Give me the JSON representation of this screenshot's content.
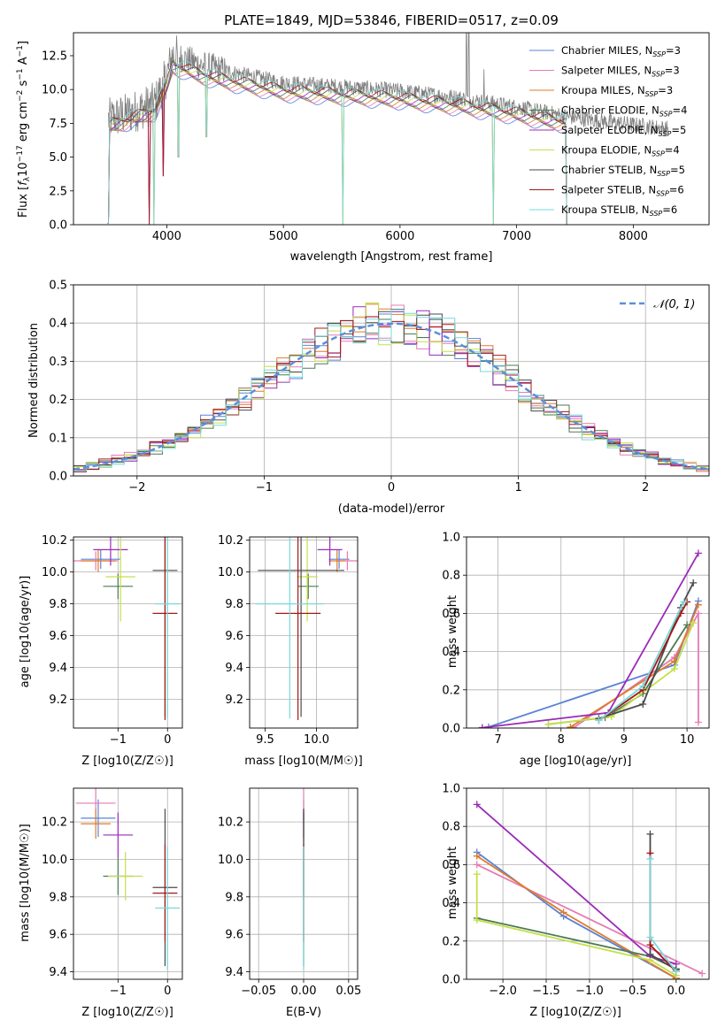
{
  "colors": {
    "chabrier_miles": "#5b82d8",
    "salpeter_miles": "#e57bb4",
    "kroupa_miles": "#e07b2a",
    "chabrier_elodie": "#4e7a52",
    "salpeter_elodie": "#9b2ab8",
    "kroupa_elodie": "#c4e04a",
    "chabrier_stelib": "#4a4a4a",
    "salpeter_stelib": "#a31818",
    "kroupa_stelib": "#78d8d8",
    "data": "#808080",
    "normal": "#5b8fdb",
    "grid": "#b0b0b0"
  },
  "chart_data": [
    {
      "id": "spectrum",
      "type": "line",
      "title": "PLATE=1849, MJD=53846, FIBERID=0517, z=0.09",
      "xlabel": "wavelength [Angstrom, rest frame]",
      "ylabel": "Flux [f_λ 10^-17 erg cm^-2 s^-1 A^-1]",
      "xlim": [
        3200,
        8650
      ],
      "ylim": [
        0,
        14.2
      ],
      "xticks": [
        "4000",
        "5000",
        "6000",
        "7000",
        "8000"
      ],
      "yticks": [
        "0.0",
        "2.5",
        "5.0",
        "7.5",
        "10.0",
        "12.5"
      ],
      "grid": false,
      "legend_position": "top-right",
      "legend": [
        {
          "label": "Chabrier MILES, N",
          "sub": "SSP",
          "suffix": "=3",
          "color": "#5b82d8"
        },
        {
          "label": "Salpeter MILES, N",
          "sub": "SSP",
          "suffix": "=3",
          "color": "#e57bb4"
        },
        {
          "label": "Kroupa MILES, N",
          "sub": "SSP",
          "suffix": "=3",
          "color": "#e07b2a"
        },
        {
          "label": "Chabrier ELODIE, N",
          "sub": "SSP",
          "suffix": "=4",
          "color": "#4e7a52"
        },
        {
          "label": "Salpeter ELODIE, N",
          "sub": "SSP",
          "suffix": "=5",
          "color": "#9b2ab8"
        },
        {
          "label": "Kroupa ELODIE, N",
          "sub": "SSP",
          "suffix": "=4",
          "color": "#c4e04a"
        },
        {
          "label": "Chabrier STELIB, N",
          "sub": "SSP",
          "suffix": "=5",
          "color": "#4a4a4a"
        },
        {
          "label": "Salpeter STELIB, N",
          "sub": "SSP",
          "suffix": "=6",
          "color": "#a31818"
        },
        {
          "label": "Kroupa STELIB, N",
          "sub": "SSP",
          "suffix": "=6",
          "color": "#78d8d8"
        }
      ],
      "continuum": {
        "x": [
          3500,
          3700,
          3900,
          4000,
          4050,
          4300,
          4600,
          5000,
          5500,
          6000,
          6500,
          7000,
          7500,
          8000,
          8300
        ],
        "y": [
          7.8,
          8.3,
          9.0,
          11.0,
          12.6,
          11.8,
          11.2,
          10.5,
          10.2,
          9.9,
          9.4,
          8.7,
          7.9,
          7.4,
          7.1
        ]
      },
      "absorption_features": [
        {
          "x": 3850,
          "y": 0.0
        },
        {
          "x": 3890,
          "y": 0.0
        },
        {
          "x": 3970,
          "y": 3.6
        },
        {
          "x": 4100,
          "y": 5.0
        },
        {
          "x": 4340,
          "y": 6.5
        },
        {
          "x": 5510,
          "y": 0.0
        },
        {
          "x": 6800,
          "y": 0.0
        }
      ],
      "emission_features": [
        {
          "x": 6570,
          "y": 14.2
        },
        {
          "x": 6590,
          "y": 14.2
        },
        {
          "x": 6720,
          "y": 11.5
        }
      ],
      "model_end": [
        {
          "x": 3490,
          "y": 0.1
        },
        {
          "x": 7430,
          "y": 0.0
        }
      ]
    },
    {
      "id": "residuals",
      "type": "histogram",
      "xlabel": "(data-model)/error",
      "ylabel": "Normed distribution",
      "xlim": [
        -2.5,
        2.5
      ],
      "ylim": [
        0,
        0.5
      ],
      "xticks": [
        "−2",
        "−1",
        "0",
        "1",
        "2"
      ],
      "yticks": [
        "0.0",
        "0.1",
        "0.2",
        "0.3",
        "0.4",
        "0.5"
      ],
      "grid": true,
      "legend_position": "top-right",
      "legend": [
        {
          "label": "𝒩(0, 1)",
          "color": "#5b8fdb",
          "style": "dashed"
        }
      ],
      "bin_width": 0.1,
      "n_bins": 50
    },
    {
      "id": "age-vs-Z",
      "type": "errorbar",
      "xlabel": "Z [log10(Z/Z☉)]",
      "ylabel": "age [log10(age/yr)]",
      "xlim": [
        -1.9,
        0.3
      ],
      "ylim": [
        9.02,
        10.22
      ],
      "xticks": [
        "−1",
        "0"
      ],
      "yticks": [
        "9.2",
        "9.4",
        "9.6",
        "9.8",
        "10.0",
        "10.2"
      ],
      "grid": true,
      "points": [
        {
          "series": "chabrier_miles",
          "x": -1.35,
          "xerr": 0.4,
          "y": 10.08,
          "yerr": 0.06
        },
        {
          "series": "salpeter_miles",
          "x": -1.45,
          "xerr": 0.45,
          "y": 10.07,
          "yerr": 0.06
        },
        {
          "series": "kroupa_miles",
          "x": -1.4,
          "xerr": 0.35,
          "y": 10.07,
          "yerr": 0.07
        },
        {
          "series": "chabrier_elodie",
          "x": -1.0,
          "xerr": 0.3,
          "y": 9.91,
          "yerr": 0.08
        },
        {
          "series": "salpeter_elodie",
          "x": -1.15,
          "xerr": 0.35,
          "y": 10.14,
          "yerr": 0.1
        },
        {
          "series": "kroupa_elodie",
          "x": -0.95,
          "xerr": 0.3,
          "y": 9.97,
          "yerr": 0.28
        },
        {
          "series": "chabrier_stelib",
          "x": -0.05,
          "xerr": 0.25,
          "y": 10.01,
          "yerr": 0.92
        },
        {
          "series": "salpeter_stelib",
          "x": -0.05,
          "xerr": 0.25,
          "y": 9.74,
          "yerr": 0.67
        },
        {
          "series": "kroupa_stelib",
          "x": 0.0,
          "xerr": 0.25,
          "y": 9.8,
          "yerr": 0.72
        }
      ]
    },
    {
      "id": "age-vs-mass",
      "type": "errorbar",
      "xlabel": "mass [log10(M/M☉)]",
      "ylabel": "",
      "xlim": [
        9.35,
        10.4
      ],
      "ylim": [
        9.02,
        10.22
      ],
      "xticks": [
        "9.5",
        "10.0"
      ],
      "yticks": [
        "9.2",
        "9.4",
        "9.6",
        "9.8",
        "10.0",
        "10.2"
      ],
      "grid": true,
      "points": [
        {
          "series": "chabrier_miles",
          "x": 10.22,
          "xerr": 0.1,
          "y": 10.08,
          "yerr": 0.06
        },
        {
          "series": "salpeter_miles",
          "x": 10.3,
          "xerr": 0.1,
          "y": 10.07,
          "yerr": 0.06
        },
        {
          "series": "kroupa_miles",
          "x": 10.2,
          "xerr": 0.08,
          "y": 10.07,
          "yerr": 0.07
        },
        {
          "series": "chabrier_elodie",
          "x": 9.92,
          "xerr": 0.1,
          "y": 9.91,
          "yerr": 0.08
        },
        {
          "series": "salpeter_elodie",
          "x": 10.13,
          "xerr": 0.12,
          "y": 10.14,
          "yerr": 0.1
        },
        {
          "series": "kroupa_elodie",
          "x": 9.91,
          "xerr": 0.1,
          "y": 9.97,
          "yerr": 0.28
        },
        {
          "series": "chabrier_stelib",
          "x": 9.85,
          "xerr": 0.42,
          "y": 10.01,
          "yerr": 0.92
        },
        {
          "series": "salpeter_stelib",
          "x": 9.82,
          "xerr": 0.22,
          "y": 9.74,
          "yerr": 0.67
        },
        {
          "series": "kroupa_stelib",
          "x": 9.74,
          "xerr": 0.33,
          "y": 9.8,
          "yerr": 0.72
        }
      ]
    },
    {
      "id": "weight-vs-age",
      "type": "line",
      "xlabel": "age [log10(age/yr)]",
      "ylabel": "mass weight",
      "xlim": [
        6.5,
        10.35
      ],
      "ylim": [
        0,
        1.0
      ],
      "xticks": [
        "7",
        "8",
        "9",
        "10"
      ],
      "yticks": [
        "0.0",
        "0.2",
        "0.4",
        "0.6",
        "0.8",
        "1.0"
      ],
      "grid": true,
      "series": [
        {
          "key": "chabrier_miles",
          "points": [
            [
              6.85,
              0.005
            ],
            [
              9.8,
              0.33
            ],
            [
              10.18,
              0.665
            ]
          ]
        },
        {
          "key": "salpeter_miles",
          "points": [
            [
              8.2,
              0.002
            ],
            [
              9.8,
              0.37
            ],
            [
              10.18,
              0.6
            ],
            [
              10.18,
              0.03
            ]
          ]
        },
        {
          "key": "kroupa_miles",
          "points": [
            [
              8.15,
              0.005
            ],
            [
              9.8,
              0.35
            ],
            [
              10.18,
              0.645
            ]
          ]
        },
        {
          "key": "chabrier_elodie",
          "points": [
            [
              7.8,
              0.02
            ],
            [
              8.7,
              0.055
            ],
            [
              9.3,
              0.18
            ],
            [
              10.0,
              0.54
            ]
          ]
        },
        {
          "key": "salpeter_elodie",
          "points": [
            [
              6.75,
              0.002
            ],
            [
              8.75,
              0.08
            ],
            [
              10.18,
              0.915
            ]
          ]
        },
        {
          "key": "kroupa_elodie",
          "points": [
            [
              7.8,
              0.02
            ],
            [
              8.8,
              0.06
            ],
            [
              9.8,
              0.31
            ],
            [
              10.1,
              0.55
            ]
          ]
        },
        {
          "key": "chabrier_stelib",
          "points": [
            [
              8.6,
              0.05
            ],
            [
              9.3,
              0.125
            ],
            [
              9.9,
              0.63
            ],
            [
              10.1,
              0.76
            ]
          ]
        },
        {
          "key": "salpeter_stelib",
          "points": [
            [
              8.6,
              0.04
            ],
            [
              9.3,
              0.2
            ],
            [
              9.9,
              0.6
            ],
            [
              10.0,
              0.66
            ]
          ]
        },
        {
          "key": "kroupa_stelib",
          "points": [
            [
              8.6,
              0.04
            ],
            [
              9.3,
              0.22
            ],
            [
              9.95,
              0.66
            ]
          ]
        }
      ]
    },
    {
      "id": "mass-vs-Z",
      "type": "errorbar",
      "xlabel": "Z [log10(Z/Z☉)]",
      "ylabel": "mass [log10(M/M☉)]",
      "xlim": [
        -1.9,
        0.3
      ],
      "ylim": [
        9.36,
        10.38
      ],
      "xticks": [
        "−1",
        "0"
      ],
      "yticks": [
        "9.4",
        "9.6",
        "9.8",
        "10.0",
        "10.2"
      ],
      "grid": true,
      "points": [
        {
          "series": "chabrier_miles",
          "x": -1.4,
          "xerr": 0.35,
          "y": 10.22,
          "yerr": 0.1
        },
        {
          "series": "salpeter_miles",
          "x": -1.45,
          "xerr": 0.4,
          "y": 10.3,
          "yerr": 0.09
        },
        {
          "series": "kroupa_miles",
          "x": -1.45,
          "xerr": 0.3,
          "y": 10.19,
          "yerr": 0.08
        },
        {
          "series": "chabrier_elodie",
          "x": -1.0,
          "xerr": 0.3,
          "y": 9.91,
          "yerr": 0.1
        },
        {
          "series": "salpeter_elodie",
          "x": -1.0,
          "xerr": 0.3,
          "y": 10.13,
          "yerr": 0.12
        },
        {
          "series": "kroupa_elodie",
          "x": -0.85,
          "xerr": 0.35,
          "y": 9.91,
          "yerr": 0.13
        },
        {
          "series": "chabrier_stelib",
          "x": -0.05,
          "xerr": 0.25,
          "y": 9.85,
          "yerr": 0.42
        },
        {
          "series": "salpeter_stelib",
          "x": -0.05,
          "xerr": 0.25,
          "y": 9.82,
          "yerr": 0.26
        },
        {
          "series": "kroupa_stelib",
          "x": 0.0,
          "xerr": 0.25,
          "y": 9.74,
          "yerr": 0.33
        }
      ]
    },
    {
      "id": "mass-vs-ebv",
      "type": "errorbar",
      "xlabel": "E(B-V)",
      "ylabel": "",
      "xlim": [
        -0.06,
        0.06
      ],
      "ylim": [
        9.36,
        10.38
      ],
      "xticks": [
        "−0.05",
        "0.00",
        "0.05"
      ],
      "yticks": [
        "9.4",
        "9.6",
        "9.8",
        "10.0",
        "10.2"
      ],
      "grid": true,
      "points": [
        {
          "series": "chabrier_miles",
          "x": 0.0,
          "xerr": 0.0,
          "y": 10.22,
          "yerr": 0.1
        },
        {
          "series": "salpeter_miles",
          "x": 0.0,
          "xerr": 0.0,
          "y": 10.3,
          "yerr": 0.09
        },
        {
          "series": "kroupa_miles",
          "x": 0.0,
          "xerr": 0.0,
          "y": 10.19,
          "yerr": 0.08
        },
        {
          "series": "chabrier_elodie",
          "x": 0.0,
          "xerr": 0.0,
          "y": 9.91,
          "yerr": 0.1
        },
        {
          "series": "salpeter_elodie",
          "x": 0.0,
          "xerr": 0.0,
          "y": 10.13,
          "yerr": 0.12
        },
        {
          "series": "kroupa_elodie",
          "x": 0.0,
          "xerr": 0.0,
          "y": 9.91,
          "yerr": 0.13
        },
        {
          "series": "chabrier_stelib",
          "x": 0.0,
          "xerr": 0.0,
          "y": 9.85,
          "yerr": 0.42
        },
        {
          "series": "salpeter_stelib",
          "x": 0.0,
          "xerr": 0.0,
          "y": 9.82,
          "yerr": 0.26
        },
        {
          "series": "kroupa_stelib",
          "x": 0.0,
          "xerr": 0.0,
          "y": 9.74,
          "yerr": 0.33
        }
      ]
    },
    {
      "id": "weight-vs-Z",
      "type": "line",
      "xlabel": "Z [log10(Z/Z☉)]",
      "ylabel": "mass weight",
      "xlim": [
        -2.42,
        0.38
      ],
      "ylim": [
        0,
        1.0
      ],
      "xticks": [
        "−2.0",
        "−1.5",
        "−1.0",
        "−0.5",
        "0.0"
      ],
      "yticks": [
        "0.0",
        "0.2",
        "0.4",
        "0.6",
        "0.8",
        "1.0"
      ],
      "grid": true,
      "series": [
        {
          "key": "chabrier_miles",
          "points": [
            [
              -2.3,
              0.665
            ],
            [
              -1.3,
              0.33
            ],
            [
              0.0,
              0.005
            ]
          ]
        },
        {
          "key": "salpeter_miles",
          "points": [
            [
              -2.3,
              0.6
            ],
            [
              0.3,
              0.03
            ]
          ]
        },
        {
          "key": "kroupa_miles",
          "points": [
            [
              -2.3,
              0.645
            ],
            [
              -1.3,
              0.35
            ],
            [
              0.0,
              0.005
            ]
          ]
        },
        {
          "key": "chabrier_elodie",
          "points": [
            [
              -2.3,
              0.32
            ],
            [
              -0.3,
              0.12
            ],
            [
              0.0,
              0.055
            ]
          ]
        },
        {
          "key": "salpeter_elodie",
          "points": [
            [
              -2.3,
              0.915
            ],
            [
              -0.3,
              0.12
            ],
            [
              0.0,
              0.08
            ]
          ]
        },
        {
          "key": "kroupa_elodie",
          "points": [
            [
              -2.3,
              0.55
            ],
            [
              -2.3,
              0.31
            ],
            [
              -0.3,
              0.1
            ],
            [
              0.0,
              0.02
            ]
          ]
        },
        {
          "key": "chabrier_stelib",
          "points": [
            [
              -0.3,
              0.76
            ],
            [
              -0.3,
              0.13
            ],
            [
              0.0,
              0.05
            ]
          ]
        },
        {
          "key": "salpeter_stelib",
          "points": [
            [
              -0.3,
              0.66
            ],
            [
              -0.3,
              0.18
            ],
            [
              0.0,
              0.04
            ]
          ]
        },
        {
          "key": "kroupa_stelib",
          "points": [
            [
              -0.3,
              0.63
            ],
            [
              -0.3,
              0.22
            ],
            [
              0.0,
              0.04
            ]
          ]
        }
      ]
    }
  ]
}
